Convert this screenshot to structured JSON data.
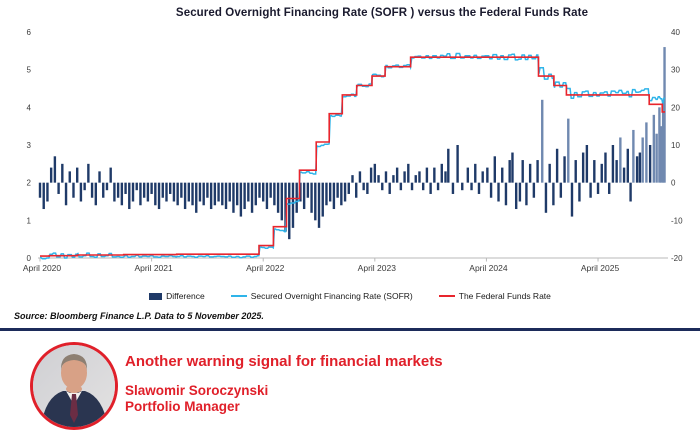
{
  "chart": {
    "title": "Secured Overnight Financing Rate (SOFR ) versus the Federal Funds Rate",
    "source": "Source: Bloomberg Finance L.P. Data to 5 November 2025.",
    "legend": [
      {
        "label": "Difference",
        "type": "bar",
        "color": "#1f3a68"
      },
      {
        "label": "Secured Overnight Financing Rate (SOFR)",
        "type": "line",
        "color": "#2fb4e9"
      },
      {
        "label": "The Federal Funds Rate",
        "type": "line",
        "color": "#e8252d"
      }
    ],
    "chart_data": {
      "type": "combo",
      "title": "Secured Overnight Financing Rate (SOFR ) versus the Federal Funds Rate",
      "x_unit": "months since April 2020",
      "x_range": [
        0,
        67.2
      ],
      "x_ticks": [
        {
          "m": 0,
          "label": "April 2020"
        },
        {
          "m": 12,
          "label": "April 2021"
        },
        {
          "m": 24,
          "label": "April 2022"
        },
        {
          "m": 36,
          "label": "April 2023"
        },
        {
          "m": 48,
          "label": "April 2024"
        },
        {
          "m": 60,
          "label": "April 2025"
        }
      ],
      "left_axis": {
        "min": 0,
        "max": 6,
        "ticks": [
          0,
          1,
          2,
          3,
          4,
          5,
          6
        ],
        "unit": "%"
      },
      "right_axis": {
        "min": -20,
        "max": 40,
        "ticks": [
          -20,
          -10,
          0,
          10,
          20,
          30,
          40
        ],
        "unit": "bps"
      },
      "grid": false,
      "legend_position": "bottom",
      "series": [
        {
          "name": "The Federal Funds Rate",
          "axis": "left",
          "type": "step-line",
          "color": "#e8252d",
          "points": [
            [
              0,
              0.05
            ],
            [
              1,
              0.06
            ],
            [
              4,
              0.08
            ],
            [
              9,
              0.09
            ],
            [
              14.7,
              0.1
            ],
            [
              23.55,
              0.33
            ],
            [
              25.1,
              0.83
            ],
            [
              26.5,
              1.58
            ],
            [
              27.9,
              2.33
            ],
            [
              29.7,
              3.08
            ],
            [
              31.1,
              3.83
            ],
            [
              32.5,
              4.33
            ],
            [
              34.05,
              4.58
            ],
            [
              35.7,
              4.83
            ],
            [
              37.1,
              5.08
            ],
            [
              39.85,
              5.33
            ],
            [
              53.6,
              4.83
            ],
            [
              55.25,
              4.58
            ],
            [
              56.6,
              4.33
            ],
            [
              65.5,
              4.08
            ],
            [
              66.9,
              3.88
            ]
          ]
        },
        {
          "name": "Difference",
          "axis": "right",
          "type": "bar",
          "unit": "bps",
          "color": "#1f3a68",
          "color_tall_spike": "#7089b0",
          "points": [
            [
              0,
              -4
            ],
            [
              0.4,
              -7
            ],
            [
              0.8,
              -5
            ],
            [
              1.2,
              4
            ],
            [
              1.6,
              7
            ],
            [
              2,
              -3
            ],
            [
              2.4,
              5
            ],
            [
              2.8,
              -6
            ],
            [
              3.2,
              3
            ],
            [
              3.6,
              -4
            ],
            [
              4,
              4
            ],
            [
              4.4,
              -5
            ],
            [
              4.8,
              -2
            ],
            [
              5.2,
              5
            ],
            [
              5.6,
              -4
            ],
            [
              6,
              -6
            ],
            [
              6.4,
              3
            ],
            [
              6.8,
              -4
            ],
            [
              7.2,
              -2
            ],
            [
              7.6,
              4
            ],
            [
              8,
              -5
            ],
            [
              8.4,
              -4
            ],
            [
              8.8,
              -6
            ],
            [
              9.2,
              -3
            ],
            [
              9.6,
              -7
            ],
            [
              10,
              -5
            ],
            [
              10.4,
              -2
            ],
            [
              10.8,
              -6
            ],
            [
              11.2,
              -4
            ],
            [
              11.6,
              -5
            ],
            [
              12,
              -3
            ],
            [
              12.4,
              -6
            ],
            [
              12.8,
              -7
            ],
            [
              13.2,
              -4
            ],
            [
              13.6,
              -5
            ],
            [
              14,
              -3
            ],
            [
              14.4,
              -5
            ],
            [
              14.8,
              -6
            ],
            [
              15.2,
              -4
            ],
            [
              15.6,
              -7
            ],
            [
              16,
              -5
            ],
            [
              16.4,
              -6
            ],
            [
              16.8,
              -8
            ],
            [
              17.2,
              -5
            ],
            [
              17.6,
              -6
            ],
            [
              18,
              -4
            ],
            [
              18.4,
              -7
            ],
            [
              18.8,
              -6
            ],
            [
              19.2,
              -5
            ],
            [
              19.6,
              -6
            ],
            [
              20,
              -7
            ],
            [
              20.4,
              -5
            ],
            [
              20.8,
              -8
            ],
            [
              21.2,
              -6
            ],
            [
              21.6,
              -9
            ],
            [
              22,
              -7
            ],
            [
              22.4,
              -5
            ],
            [
              22.8,
              -8
            ],
            [
              23.2,
              -6
            ],
            [
              23.6,
              -4
            ],
            [
              24,
              -5
            ],
            [
              24.4,
              -7
            ],
            [
              24.8,
              -4
            ],
            [
              25.2,
              -6
            ],
            [
              25.6,
              -8
            ],
            [
              26,
              -10
            ],
            [
              26.4,
              -13
            ],
            [
              26.8,
              -15
            ],
            [
              27.2,
              -12
            ],
            [
              27.6,
              -8
            ],
            [
              28,
              -5
            ],
            [
              28.4,
              -7
            ],
            [
              28.8,
              -4
            ],
            [
              29.2,
              -8
            ],
            [
              29.6,
              -10
            ],
            [
              30,
              -12
            ],
            [
              30.4,
              -9
            ],
            [
              30.8,
              -6
            ],
            [
              31.2,
              -5
            ],
            [
              31.6,
              -7
            ],
            [
              32,
              -4
            ],
            [
              32.4,
              -6
            ],
            [
              32.8,
              -5
            ],
            [
              33.2,
              -3
            ],
            [
              33.6,
              2
            ],
            [
              34,
              -4
            ],
            [
              34.4,
              3
            ],
            [
              34.8,
              -2
            ],
            [
              35.2,
              -3
            ],
            [
              35.6,
              4
            ],
            [
              36,
              5
            ],
            [
              36.4,
              2
            ],
            [
              36.8,
              -2
            ],
            [
              37.2,
              3
            ],
            [
              37.6,
              -3
            ],
            [
              38,
              2
            ],
            [
              38.4,
              4
            ],
            [
              38.8,
              -2
            ],
            [
              39.2,
              3
            ],
            [
              39.6,
              5
            ],
            [
              40,
              -2
            ],
            [
              40.4,
              2
            ],
            [
              40.8,
              3
            ],
            [
              41.2,
              -2
            ],
            [
              41.6,
              4
            ],
            [
              42,
              -3
            ],
            [
              42.4,
              4
            ],
            [
              42.8,
              -2
            ],
            [
              43.2,
              5
            ],
            [
              43.6,
              3
            ],
            [
              43.9,
              9
            ],
            [
              44.4,
              -3
            ],
            [
              44.9,
              10
            ],
            [
              45.4,
              -2
            ],
            [
              46,
              4
            ],
            [
              46.4,
              -2
            ],
            [
              46.8,
              5
            ],
            [
              47.2,
              -3
            ],
            [
              47.6,
              3
            ],
            [
              48.1,
              4
            ],
            [
              48.5,
              -4
            ],
            [
              48.9,
              7
            ],
            [
              49.3,
              -5
            ],
            [
              49.7,
              4
            ],
            [
              50.1,
              -6
            ],
            [
              50.5,
              6
            ],
            [
              50.8,
              8
            ],
            [
              51.2,
              -7
            ],
            [
              51.6,
              -5
            ],
            [
              51.9,
              6
            ],
            [
              52.3,
              -6
            ],
            [
              52.7,
              5
            ],
            [
              53.1,
              -4
            ],
            [
              53.5,
              6
            ],
            [
              54,
              22
            ],
            [
              54.4,
              -8
            ],
            [
              54.8,
              5
            ],
            [
              55.2,
              -6
            ],
            [
              55.6,
              9
            ],
            [
              56,
              -4
            ],
            [
              56.4,
              7
            ],
            [
              56.8,
              17
            ],
            [
              57.2,
              -9
            ],
            [
              57.6,
              6
            ],
            [
              58,
              -5
            ],
            [
              58.4,
              8
            ],
            [
              58.8,
              10
            ],
            [
              59.2,
              -4
            ],
            [
              59.6,
              6
            ],
            [
              60,
              -3
            ],
            [
              60.4,
              5
            ],
            [
              60.8,
              8
            ],
            [
              61.2,
              -3
            ],
            [
              61.6,
              10
            ],
            [
              62,
              6
            ],
            [
              62.4,
              12
            ],
            [
              62.8,
              4
            ],
            [
              63.2,
              9
            ],
            [
              63.5,
              -5
            ],
            [
              63.8,
              14
            ],
            [
              64.2,
              7
            ],
            [
              64.5,
              8
            ],
            [
              64.8,
              12
            ],
            [
              65.2,
              16
            ],
            [
              65.6,
              10
            ],
            [
              66,
              18
            ],
            [
              66.3,
              13
            ],
            [
              66.6,
              20
            ],
            [
              66.8,
              15
            ],
            [
              67,
              22
            ],
            [
              67.15,
              36
            ]
          ]
        },
        {
          "name": "Secured Overnight Financing Rate (SOFR)",
          "axis": "left",
          "type": "line",
          "color": "#2fb4e9",
          "derived": "Federal Funds Rate + Difference/100"
        }
      ]
    }
  },
  "footer": {
    "headline": "Another warning signal for financial markets",
    "author": "Slawomir Soroczynski",
    "role": "Portfolio Manager",
    "accent_red": "#e0202a",
    "divider_navy": "#1c2b5a"
  }
}
